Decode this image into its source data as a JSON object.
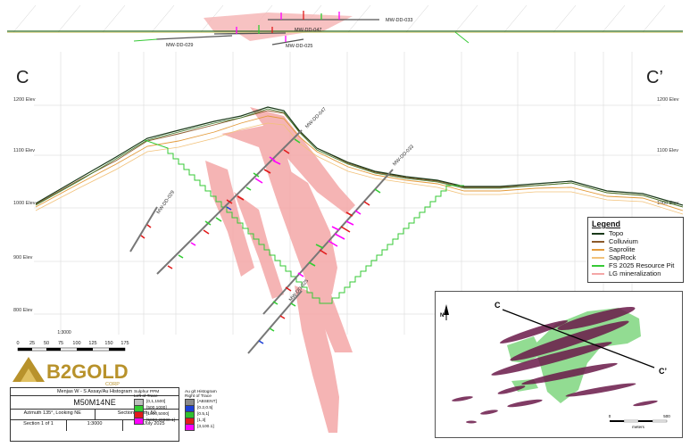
{
  "section": {
    "left_label": "C",
    "right_label": "C’",
    "elevations": [
      "1200 Elev",
      "1100 Elev",
      "1000 Elev",
      "900 Elev",
      "800 Elev"
    ],
    "drillholes": [
      "MW-DD-047",
      "MW-DD-033",
      "MW-DD-029",
      "MW-DD-025"
    ],
    "plan_holes": [
      "MW-DD-033",
      "MW-DD-047",
      "MW-DD-029",
      "MW-DD-025"
    ]
  },
  "legend": {
    "title": "Legend",
    "items": [
      {
        "label": "Topo",
        "color": "#1a3a1a"
      },
      {
        "label": "Colluvium",
        "color": "#8b5a2b"
      },
      {
        "label": "Saprolite",
        "color": "#e39a3a"
      },
      {
        "label": "SapRock",
        "color": "#f2c27a"
      },
      {
        "label": "FS 2025 Resource Pit",
        "color": "#36c936"
      },
      {
        "label": "LG mineralization",
        "color": "#f4a7a7"
      }
    ]
  },
  "scale": {
    "ratio": "1:3000",
    "ticks": [
      "0",
      "25",
      "50",
      "75",
      "100",
      "125",
      "150",
      "175"
    ]
  },
  "logo": {
    "brand": "B2GOLD",
    "sub": "CORP"
  },
  "title_block": {
    "subtitle": "Menjas W - S Assay/Au Histogram",
    "name": "M50M14NE",
    "azimuth": "Azimuth 135°, Looking NE",
    "width": "Section Width: 50",
    "section": "Section 1 of 1",
    "scale": "1:3000",
    "date": "30 July 2025"
  },
  "sulphur_key": {
    "title": "Sulphur PPM",
    "subtitle": "Left of Trace",
    "items": [
      {
        "label": "[0,1,1500]",
        "color": "#bdbdbd"
      },
      {
        "label": "[500,1000]",
        "color": "#32cd32"
      },
      {
        "label": "[1000,5000]",
        "color": "#e11b1b"
      },
      {
        "label": "[5000,20000.1]",
        "color": "#ff00ff"
      }
    ]
  },
  "au_key": {
    "title": "Au g/t Histogram",
    "subtitle": "Right of Trace",
    "items": [
      {
        "label": "[ABSENT]",
        "color": "#8a8a8a"
      },
      {
        "label": "[0.2,0.5]",
        "color": "#1c3fd6"
      },
      {
        "label": "[0.5,1]",
        "color": "#2fbf2f"
      },
      {
        "label": "[1,3]",
        "color": "#e11b1b"
      },
      {
        "label": "[3,100.1]",
        "color": "#ff00ff"
      }
    ]
  },
  "inset": {
    "left_label": "C",
    "right_label": "C’",
    "north": "N",
    "scale_ticks": [
      "0",
      "500"
    ],
    "scale_unit": "meters"
  }
}
